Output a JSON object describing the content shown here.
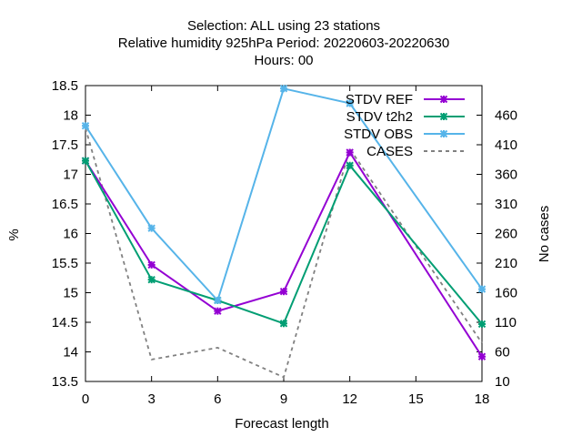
{
  "chart_data": {
    "type": "line",
    "title_lines": [
      "Selection: ALL using    23 stations",
      "Relative humidity 925hPa   Period: 20220603-20220630",
      "Hours:  00"
    ],
    "xlabel": "Forecast length",
    "ylabel": "%",
    "y2label": "No cases",
    "x_ticks": [
      "0",
      "3",
      "6",
      "9",
      "12",
      "15",
      "18"
    ],
    "y_ticks": [
      "13.5",
      "14",
      "14.5",
      "15",
      "15.5",
      "16",
      "16.5",
      "17",
      "17.5",
      "18",
      "18.5"
    ],
    "y2_ticks": [
      "10",
      "60",
      "110",
      "160",
      "210",
      "260",
      "310",
      "360",
      "410",
      "460"
    ],
    "xlim": [
      0,
      18
    ],
    "ylim": [
      13.5,
      18.5
    ],
    "y2lim": [
      10,
      510
    ],
    "legend_position": "top-right",
    "series": [
      {
        "name": "STDV REF",
        "axis": "y",
        "color": "#9400d3",
        "marker": "x-cross",
        "x": [
          0,
          3,
          6,
          9,
          12,
          18
        ],
        "values": [
          17.23,
          15.47,
          14.69,
          15.02,
          17.37,
          13.92
        ]
      },
      {
        "name": "STDV t2h2",
        "axis": "y",
        "color": "#009e73",
        "marker": "x-cross",
        "x": [
          0,
          3,
          6,
          9,
          12,
          18
        ],
        "values": [
          17.23,
          15.22,
          14.87,
          14.48,
          17.15,
          14.47
        ]
      },
      {
        "name": "STDV OBS",
        "axis": "y",
        "color": "#56b4e9",
        "marker": "x-cross",
        "x": [
          0,
          3,
          6,
          9,
          12,
          18
        ],
        "values": [
          17.82,
          16.09,
          14.87,
          18.45,
          18.2,
          15.06
        ]
      },
      {
        "name": "CASES",
        "axis": "y2",
        "color": "#808080",
        "marker": "none",
        "dashed": true,
        "x": [
          0,
          3,
          6,
          9,
          12,
          18
        ],
        "values": [
          438,
          47,
          67,
          17,
          403,
          75
        ]
      }
    ]
  }
}
